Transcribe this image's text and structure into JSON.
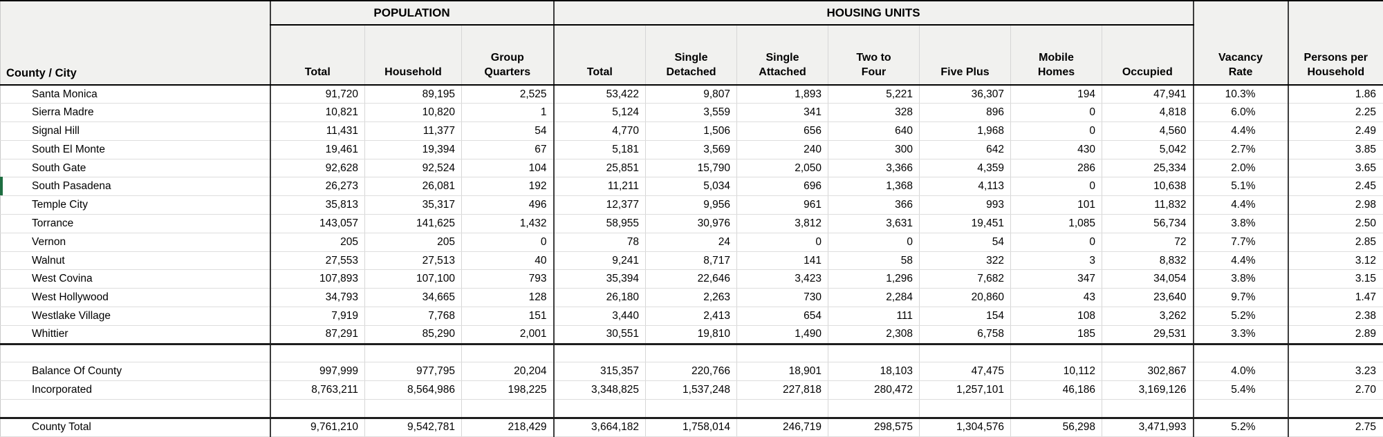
{
  "sheet": {
    "selection_indicator_color": "#1e6e41"
  },
  "table": {
    "corner_label": "County / City",
    "group_headers": {
      "population": "POPULATION",
      "housing_units": "HOUSING UNITS"
    },
    "column_headers": [
      "Total",
      "Household",
      "Group\nQuarters",
      "Total",
      "Single\nDetached",
      "Single\nAttached",
      "Two to\nFour",
      "Five Plus",
      "Mobile\nHomes",
      "Occupied"
    ],
    "side_headers": {
      "vacancy_rate": "Vacancy\nRate",
      "persons_per_household": "Persons per\nHousehold"
    },
    "rows": [
      {
        "kind": "city",
        "label": "Santa Monica",
        "values": [
          "91,720",
          "89,195",
          "2,525",
          "53,422",
          "9,807",
          "1,893",
          "5,221",
          "36,307",
          "194",
          "47,941",
          "10.3%",
          "1.86"
        ]
      },
      {
        "kind": "city",
        "label": "Sierra Madre",
        "values": [
          "10,821",
          "10,820",
          "1",
          "5,124",
          "3,559",
          "341",
          "328",
          "896",
          "0",
          "4,818",
          "6.0%",
          "2.25"
        ]
      },
      {
        "kind": "city",
        "label": "Signal Hill",
        "values": [
          "11,431",
          "11,377",
          "54",
          "4,770",
          "1,506",
          "656",
          "640",
          "1,968",
          "0",
          "4,560",
          "4.4%",
          "2.49"
        ]
      },
      {
        "kind": "city",
        "label": "South El Monte",
        "values": [
          "19,461",
          "19,394",
          "67",
          "5,181",
          "3,569",
          "240",
          "300",
          "642",
          "430",
          "5,042",
          "2.7%",
          "3.85"
        ]
      },
      {
        "kind": "city",
        "label": "South Gate",
        "values": [
          "92,628",
          "92,524",
          "104",
          "25,851",
          "15,790",
          "2,050",
          "3,366",
          "4,359",
          "286",
          "25,334",
          "2.0%",
          "3.65"
        ]
      },
      {
        "kind": "city",
        "label": "South Pasadena",
        "values": [
          "26,273",
          "26,081",
          "192",
          "11,211",
          "5,034",
          "696",
          "1,368",
          "4,113",
          "0",
          "10,638",
          "5.1%",
          "2.45"
        ]
      },
      {
        "kind": "city",
        "label": "Temple City",
        "values": [
          "35,813",
          "35,317",
          "496",
          "12,377",
          "9,956",
          "961",
          "366",
          "993",
          "101",
          "11,832",
          "4.4%",
          "2.98"
        ]
      },
      {
        "kind": "city",
        "label": "Torrance",
        "values": [
          "143,057",
          "141,625",
          "1,432",
          "58,955",
          "30,976",
          "3,812",
          "3,631",
          "19,451",
          "1,085",
          "56,734",
          "3.8%",
          "2.50"
        ]
      },
      {
        "kind": "city",
        "label": "Vernon",
        "values": [
          "205",
          "205",
          "0",
          "78",
          "24",
          "0",
          "0",
          "54",
          "0",
          "72",
          "7.7%",
          "2.85"
        ]
      },
      {
        "kind": "city",
        "label": "Walnut",
        "values": [
          "27,553",
          "27,513",
          "40",
          "9,241",
          "8,717",
          "141",
          "58",
          "322",
          "3",
          "8,832",
          "4.4%",
          "3.12"
        ]
      },
      {
        "kind": "city",
        "label": "West Covina",
        "values": [
          "107,893",
          "107,100",
          "793",
          "35,394",
          "22,646",
          "3,423",
          "1,296",
          "7,682",
          "347",
          "34,054",
          "3.8%",
          "3.15"
        ]
      },
      {
        "kind": "city",
        "label": "West Hollywood",
        "values": [
          "34,793",
          "34,665",
          "128",
          "26,180",
          "2,263",
          "730",
          "2,284",
          "20,860",
          "43",
          "23,640",
          "9.7%",
          "1.47"
        ]
      },
      {
        "kind": "city",
        "label": "Westlake Village",
        "values": [
          "7,919",
          "7,768",
          "151",
          "3,440",
          "2,413",
          "654",
          "111",
          "154",
          "108",
          "3,262",
          "5.2%",
          "2.38"
        ]
      },
      {
        "kind": "city",
        "label": "Whittier",
        "values": [
          "87,291",
          "85,290",
          "2,001",
          "30,551",
          "19,810",
          "1,490",
          "2,308",
          "6,758",
          "185",
          "29,531",
          "3.3%",
          "2.89"
        ]
      },
      {
        "kind": "spacer",
        "rule_top": true,
        "label": "",
        "values": []
      },
      {
        "kind": "summary",
        "label": "Balance Of County",
        "values": [
          "997,999",
          "977,795",
          "20,204",
          "315,357",
          "220,766",
          "18,901",
          "18,103",
          "47,475",
          "10,112",
          "302,867",
          "4.0%",
          "3.23"
        ]
      },
      {
        "kind": "summary",
        "label": "Incorporated",
        "values": [
          "8,763,211",
          "8,564,986",
          "198,225",
          "3,348,825",
          "1,537,248",
          "227,818",
          "280,472",
          "1,257,101",
          "46,186",
          "3,169,126",
          "5.4%",
          "2.70"
        ]
      },
      {
        "kind": "spacer",
        "label": "",
        "values": []
      },
      {
        "kind": "total",
        "rule_top": true,
        "label": "County Total",
        "values": [
          "9,761,210",
          "9,542,781",
          "218,429",
          "3,664,182",
          "1,758,014",
          "246,719",
          "298,575",
          "1,304,576",
          "56,298",
          "3,471,993",
          "5.2%",
          "2.75"
        ]
      }
    ]
  }
}
